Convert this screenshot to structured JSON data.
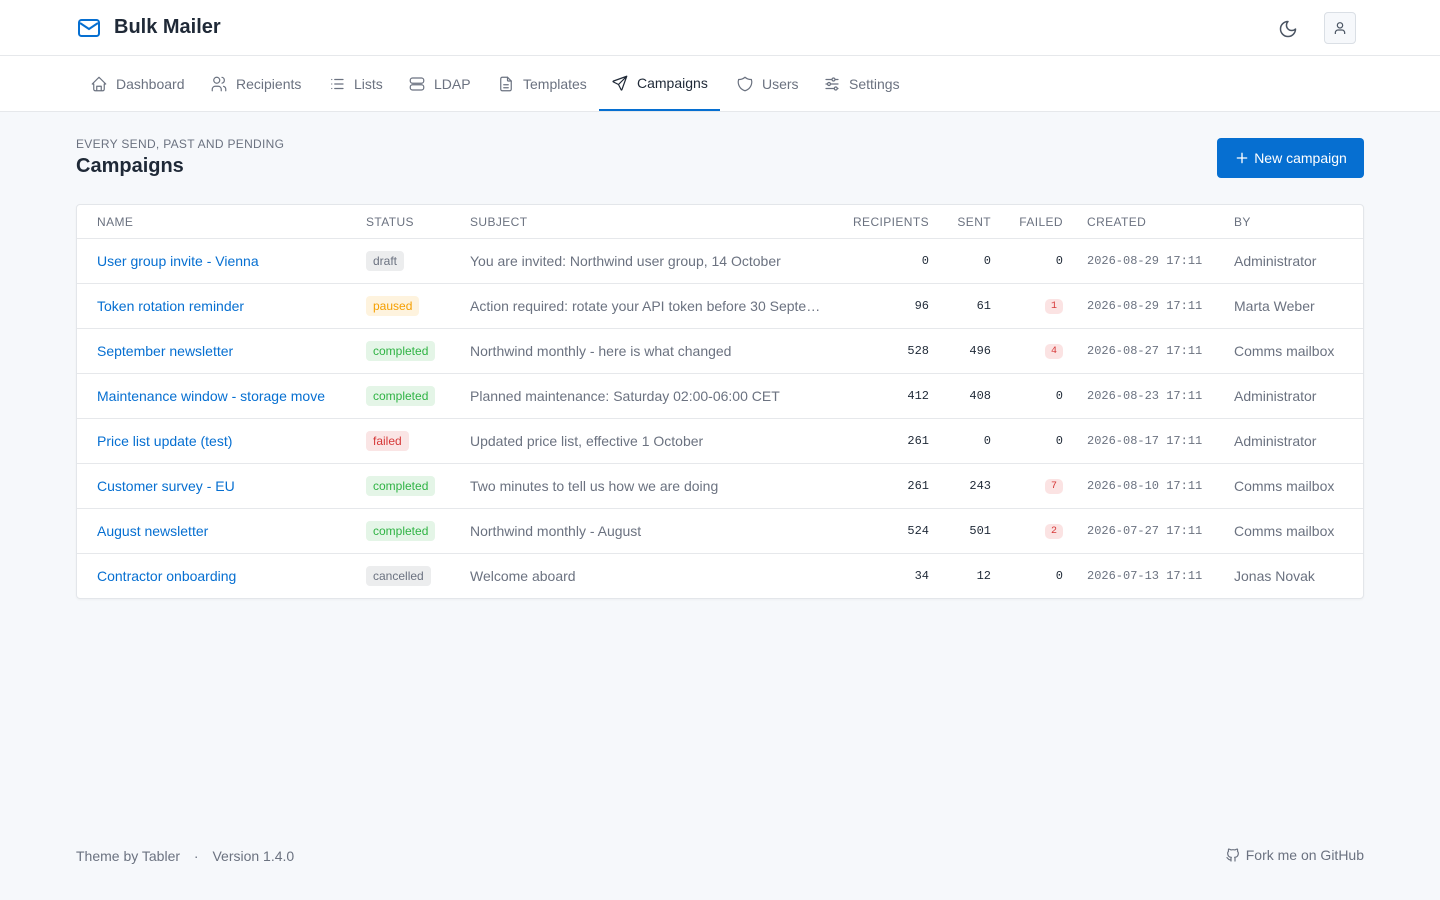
{
  "header": {
    "brand": "Bulk Mailer"
  },
  "nav": [
    {
      "label": "Dashboard"
    },
    {
      "label": "Recipients"
    },
    {
      "label": "Lists"
    },
    {
      "label": "LDAP"
    },
    {
      "label": "Templates"
    },
    {
      "label": "Campaigns",
      "active": true
    },
    {
      "label": "Users"
    },
    {
      "label": "Settings"
    }
  ],
  "page": {
    "pretitle": "EVERY SEND, PAST AND PENDING",
    "title": "Campaigns",
    "button": "New campaign"
  },
  "table": {
    "columns": [
      "NAME",
      "STATUS",
      "SUBJECT",
      "RECIPIENTS",
      "SENT",
      "FAILED",
      "CREATED",
      "BY"
    ],
    "rows": [
      {
        "name": "User group invite - Vienna",
        "status": "draft",
        "status_color": "#6b7280",
        "subject": "You are invited: Northwind user group, 14 October",
        "recipients": 0,
        "sent": 0,
        "failed": 0,
        "created": "2026-08-29 17:11",
        "by": "Administrator"
      },
      {
        "name": "Token rotation reminder",
        "status": "paused",
        "status_color": "#f59f00",
        "subject": "Action required: rotate your API token before 30 Septe…",
        "recipients": 96,
        "sent": 61,
        "failed": 1,
        "created": "2026-08-29 17:11",
        "by": "Marta Weber"
      },
      {
        "name": "September newsletter",
        "status": "completed",
        "status_color": "#2fb344",
        "subject": "Northwind monthly - here is what changed",
        "recipients": 528,
        "sent": 496,
        "failed": 4,
        "created": "2026-08-27 17:11",
        "by": "Comms mailbox"
      },
      {
        "name": "Maintenance window - storage move",
        "status": "completed",
        "status_color": "#2fb344",
        "subject": "Planned maintenance: Saturday 02:00-06:00 CET",
        "recipients": 412,
        "sent": 408,
        "failed": 0,
        "created": "2026-08-23 17:11",
        "by": "Administrator"
      },
      {
        "name": "Price list update (test)",
        "status": "failed",
        "status_color": "#d63939",
        "subject": "Updated price list, effective 1 October",
        "recipients": 261,
        "sent": 0,
        "failed": 0,
        "created": "2026-08-17 17:11",
        "by": "Administrator"
      },
      {
        "name": "Customer survey - EU",
        "status": "completed",
        "status_color": "#2fb344",
        "subject": "Two minutes to tell us how we are doing",
        "recipients": 261,
        "sent": 243,
        "failed": 7,
        "created": "2026-08-10 17:11",
        "by": "Comms mailbox"
      },
      {
        "name": "August newsletter",
        "status": "completed",
        "status_color": "#2fb344",
        "subject": "Northwind monthly - August",
        "recipients": 524,
        "sent": 501,
        "failed": 2,
        "created": "2026-07-27 17:11",
        "by": "Comms mailbox"
      },
      {
        "name": "Contractor onboarding",
        "status": "cancelled",
        "status_color": "#6b7280",
        "subject": "Welcome aboard",
        "recipients": 34,
        "sent": 12,
        "failed": 0,
        "created": "2026-07-13 17:11",
        "by": "Jonas Novak"
      }
    ]
  },
  "footer": {
    "theme": "Theme by Tabler",
    "separator": "·",
    "version": "Version 1.4.0",
    "github": "Fork me on GitHub"
  }
}
